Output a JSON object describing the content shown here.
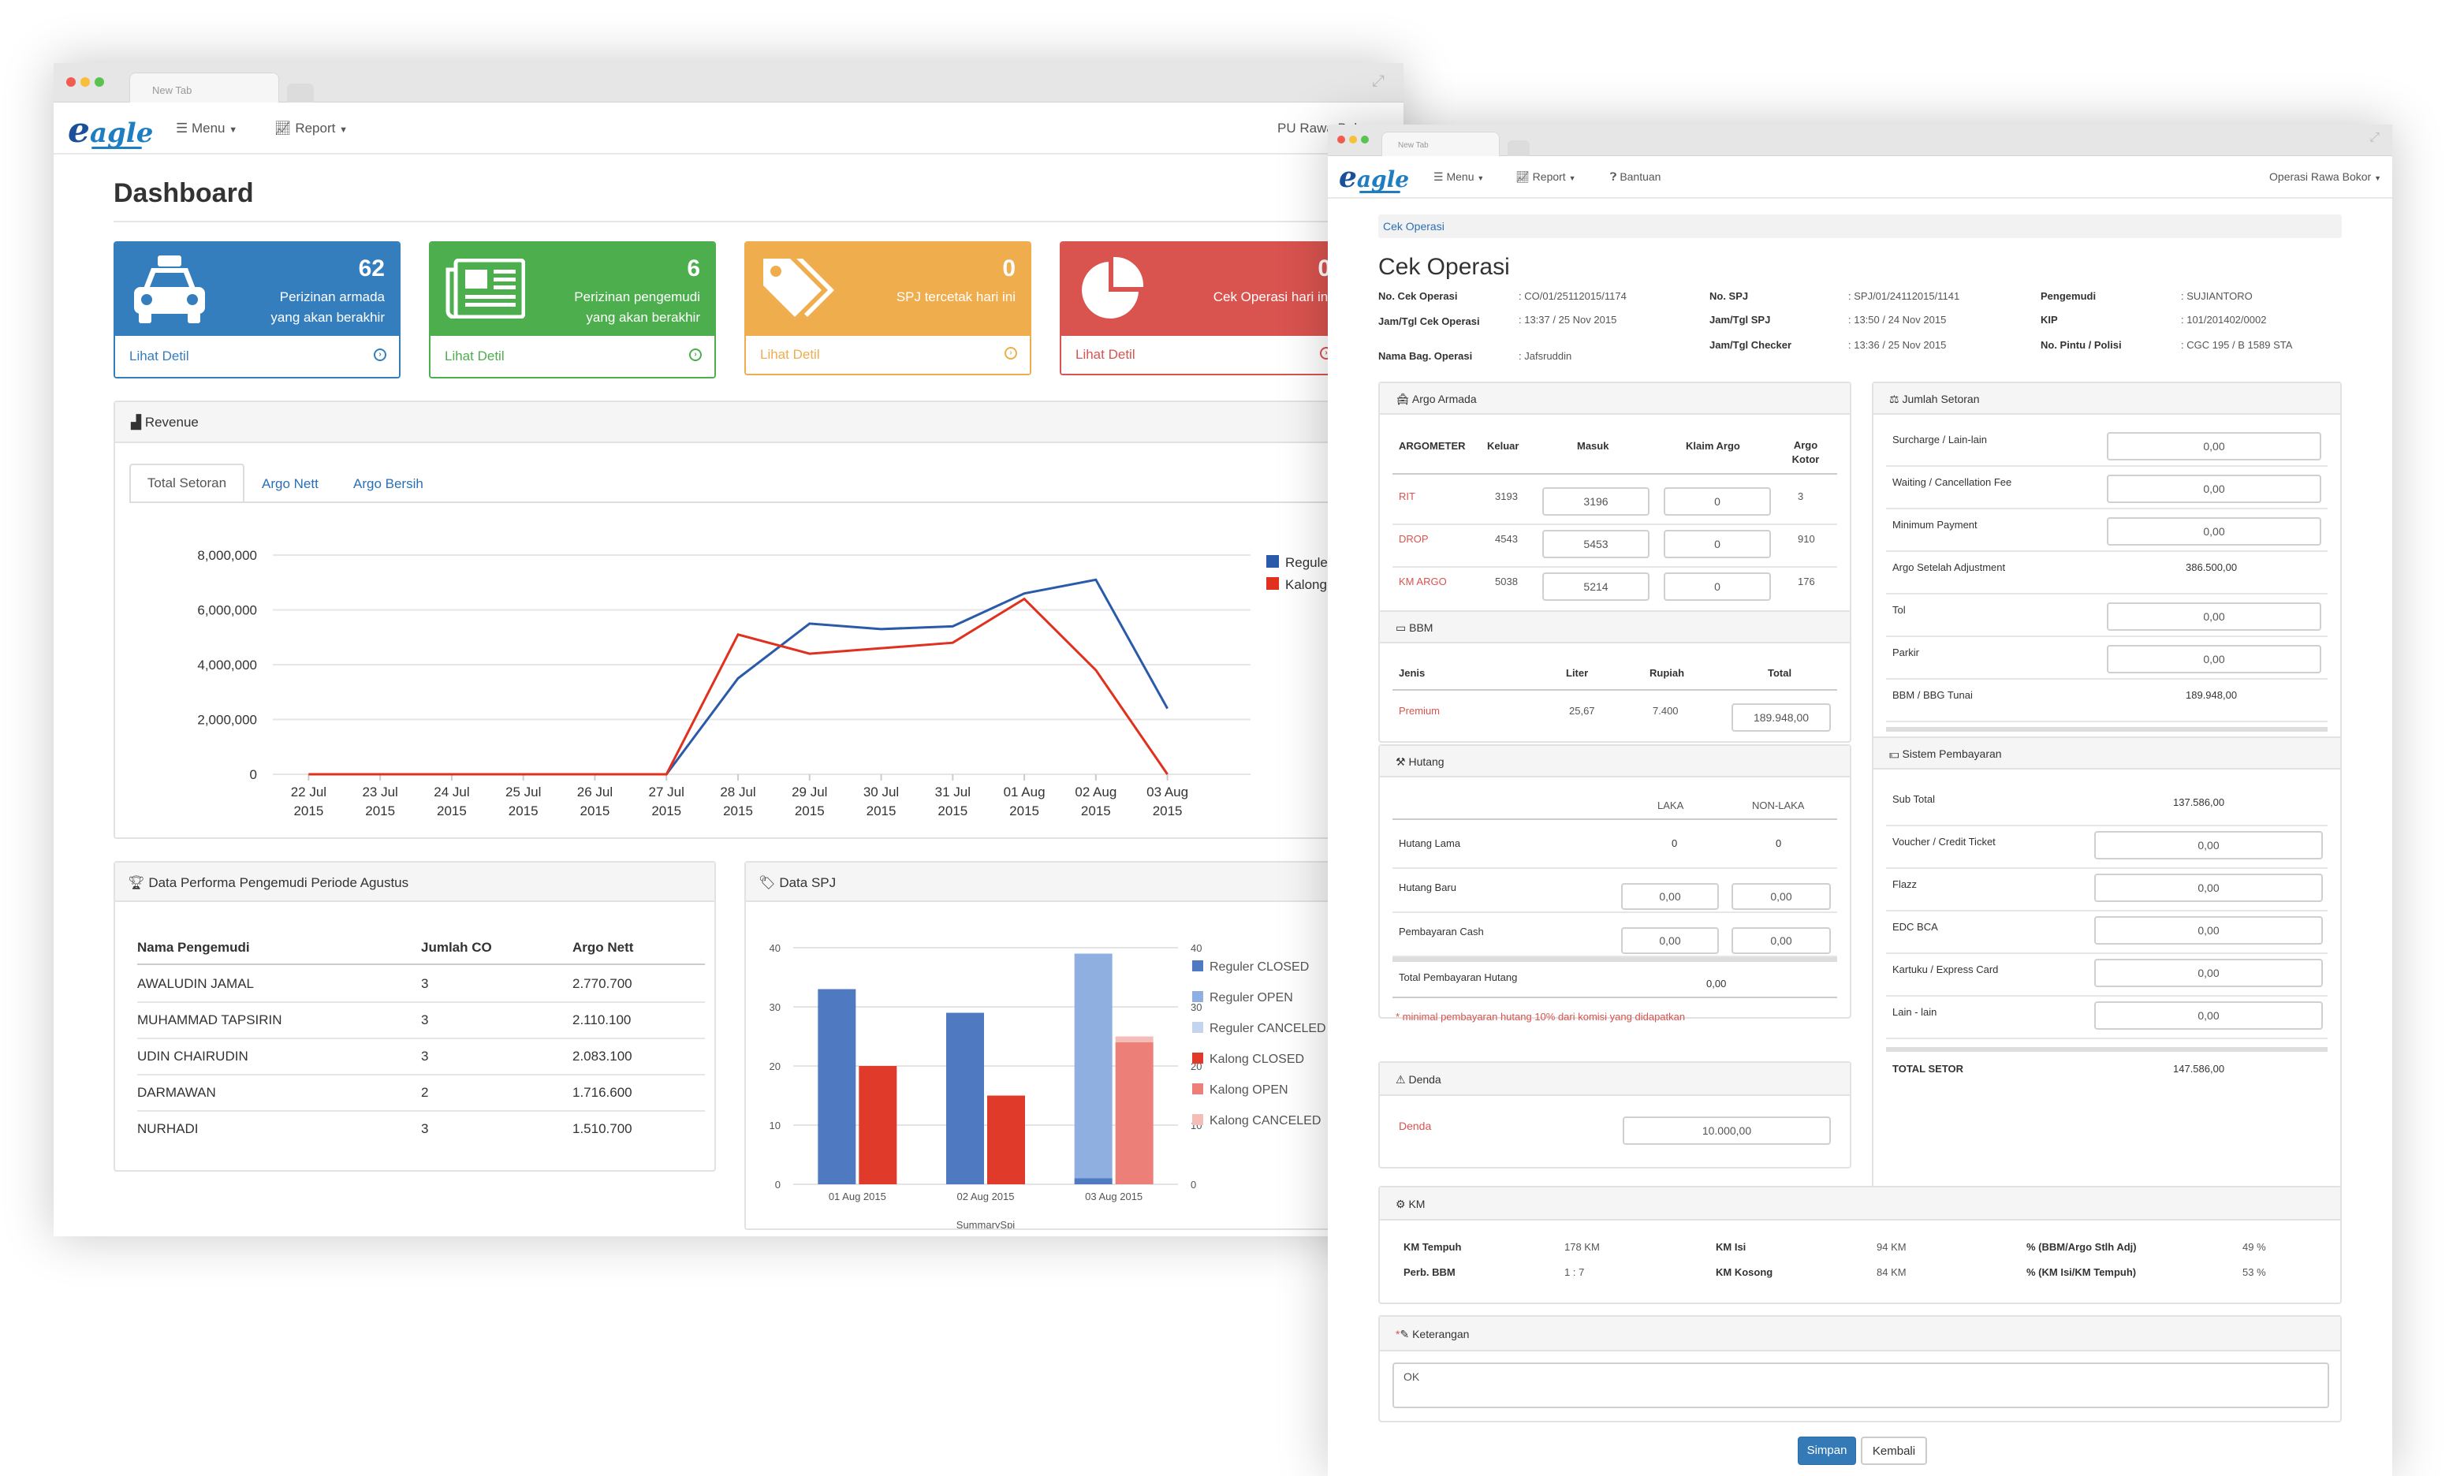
{
  "colors": {
    "blue": "#357ebd",
    "green": "#4cae4c",
    "orange": "#efad4d",
    "red": "#d9534f",
    "link": "#2a6fb6"
  },
  "window1": {
    "tab_title": "New Tab",
    "brand_text": "agle",
    "nav": {
      "menu": "Menu",
      "report": "Report",
      "user": "PU Rawa Bokor"
    },
    "page_title": "Dashboard",
    "cards": [
      {
        "icon": "taxi-icon",
        "number": "62",
        "label_1": "Perizinan armada",
        "label_2": "yang akan berakhir",
        "link": "Lihat Detil",
        "color": "#357ebd"
      },
      {
        "icon": "newspaper-icon",
        "number": "6",
        "label_1": "Perizinan pengemudi",
        "label_2": "yang akan berakhir",
        "link": "Lihat Detil",
        "color": "#4cae4c"
      },
      {
        "icon": "tag-icon",
        "number": "0",
        "label_1": "SPJ tercetak hari ini",
        "label_2": "",
        "link": "Lihat Detil",
        "color": "#efad4d"
      },
      {
        "icon": "pie-chart-icon",
        "number": "0",
        "label_1": "Cek Operasi hari ini",
        "label_2": "",
        "link": "Lihat Detil",
        "color": "#d9534f"
      }
    ],
    "revenue": {
      "heading": "Revenue",
      "tabs": [
        "Total Setoran",
        "Argo Nett",
        "Argo Bersih"
      ]
    },
    "performa": {
      "heading": "Data Performa Pengemudi Periode Agustus",
      "columns": [
        "Nama Pengemudi",
        "Jumlah CO",
        "Argo Nett"
      ],
      "rows": [
        [
          "AWALUDIN JAMAL",
          "3",
          "2.770.700"
        ],
        [
          "MUHAMMAD TAPSIRIN",
          "3",
          "2.110.100"
        ],
        [
          "UDIN CHAIRUDIN",
          "3",
          "2.083.100"
        ],
        [
          "DARMAWAN",
          "2",
          "1.716.600"
        ],
        [
          "NURHADI",
          "3",
          "1.510.700"
        ]
      ]
    },
    "spj": {
      "heading": "Data SPJ"
    }
  },
  "chart_data": [
    {
      "type": "line",
      "x": [
        "22 Jul 2015",
        "23 Jul 2015",
        "24 Jul 2015",
        "25 Jul 2015",
        "26 Jul 2015",
        "27 Jul 2015",
        "28 Jul 2015",
        "29 Jul 2015",
        "30 Jul 2015",
        "31 Jul 2015",
        "01 Aug 2015",
        "02 Aug 2015",
        "03 Aug 2015"
      ],
      "x_ticks": [
        [
          "22 Jul",
          "2015"
        ],
        [
          "23 Jul",
          "2015"
        ],
        [
          "24 Jul",
          "2015"
        ],
        [
          "25 Jul",
          "2015"
        ],
        [
          "26 Jul",
          "2015"
        ],
        [
          "27 Jul",
          "2015"
        ],
        [
          "28 Jul",
          "2015"
        ],
        [
          "29 Jul",
          "2015"
        ],
        [
          "30 Jul",
          "2015"
        ],
        [
          "31 Jul",
          "2015"
        ],
        [
          "01 Aug",
          "2015"
        ],
        [
          "02 Aug",
          "2015"
        ],
        [
          "03 Aug",
          "2015"
        ]
      ],
      "y_ticks": [
        "0",
        "2,000,000",
        "4,000,000",
        "6,000,000",
        "8,000,000"
      ],
      "ylim": [
        0,
        8000000
      ],
      "series": [
        {
          "name": "Reguler",
          "color": "#2a5aa8",
          "values": [
            0,
            0,
            0,
            0,
            0,
            0,
            3500000,
            5500000,
            5300000,
            5400000,
            6600000,
            7100000,
            2400000
          ]
        },
        {
          "name": "Kalong",
          "color": "#e0301e",
          "values": [
            0,
            0,
            0,
            0,
            0,
            0,
            5100000,
            4400000,
            4600000,
            4800000,
            6400000,
            3800000,
            0
          ]
        }
      ],
      "legend": "top-right",
      "grid": true
    },
    {
      "type": "bar",
      "categories": [
        "01 Aug 2015",
        "02 Aug 2015",
        "03 Aug 2015"
      ],
      "xlabel": "SummarySpj",
      "y_ticks": [
        "0",
        "10",
        "20",
        "30",
        "40"
      ],
      "ylim": [
        0,
        40
      ],
      "series": [
        {
          "name": "Reguler CLOSED",
          "color": "#4f79c0",
          "values": [
            33,
            29,
            1
          ]
        },
        {
          "name": "Reguler OPEN",
          "color": "#8eafe0",
          "values": [
            0,
            0,
            38
          ]
        },
        {
          "name": "Reguler CANCELED",
          "color": "#c4d4ef",
          "values": [
            0,
            0,
            0
          ]
        },
        {
          "name": "Kalong CLOSED",
          "color": "#e03a2b",
          "values": [
            20,
            15,
            0
          ]
        },
        {
          "name": "Kalong OPEN",
          "color": "#ec8078",
          "values": [
            0,
            0,
            24
          ]
        },
        {
          "name": "Kalong CANCELED",
          "color": "#f5bdb8",
          "values": [
            0,
            0,
            1
          ]
        }
      ],
      "legend": "right",
      "grid": true
    }
  ],
  "window2": {
    "tab_title": "New Tab",
    "brand_text": "agle",
    "nav": {
      "menu": "Menu",
      "report": "Report",
      "help": "Bantuan",
      "user": "Operasi Rawa Bokor"
    },
    "breadcrumb": "Cek Operasi",
    "page_title": "Cek Operasi",
    "info": [
      {
        "label": "No. Cek Operasi",
        "value": ": CO/01/25112015/1174"
      },
      {
        "label": "Jam/Tgl Cek Operasi",
        "value": ": 13:37 / 25 Nov 2015"
      },
      {
        "label": "Nama Bag. Operasi",
        "value": ": Jafsruddin"
      },
      {
        "label": "No. SPJ",
        "value": ": SPJ/01/24112015/1141"
      },
      {
        "label": "Jam/Tgl SPJ",
        "value": ": 13:50 / 24 Nov 2015"
      },
      {
        "label": "Jam/Tgl Checker",
        "value": ": 13:36 / 25 Nov 2015"
      },
      {
        "label": "Pengemudi",
        "value": ": SUJIANTORO"
      },
      {
        "label": "KIP",
        "value": ": 101/201402/0002"
      },
      {
        "label": "No. Pintu / Polisi",
        "value": ": CGC 195 / B 1589 STA"
      }
    ],
    "argo": {
      "heading": "Argo Armada",
      "columns": [
        "ARGOMETER",
        "Keluar",
        "Masuk",
        "Klaim Argo",
        "Argo Kotor"
      ],
      "rows": [
        {
          "name": "RIT",
          "keluar": "3193",
          "masuk": "3196",
          "klaim": "0",
          "kotor": "3"
        },
        {
          "name": "DROP",
          "keluar": "4543",
          "masuk": "5453",
          "klaim": "0",
          "kotor": "910"
        },
        {
          "name": "KM ARGO",
          "keluar": "5038",
          "masuk": "5214",
          "klaim": "0",
          "kotor": "176"
        }
      ]
    },
    "bbm": {
      "heading": "BBM",
      "columns": [
        "Jenis",
        "Liter",
        "Rupiah",
        "Total"
      ],
      "row": {
        "name": "Premium",
        "liter": "25,67",
        "rupiah": "7.400",
        "total": "189.948,00"
      }
    },
    "hutang": {
      "heading": "Hutang",
      "columns": [
        "LAKA",
        "NON-LAKA"
      ],
      "rows": [
        {
          "label": "Hutang Lama",
          "laka": "0",
          "nonlaka": "0"
        },
        {
          "label": "Hutang Baru",
          "laka": "0,00",
          "nonlaka": "0,00"
        },
        {
          "label": "Pembayaran Cash",
          "laka": "0,00",
          "nonlaka": "0,00"
        }
      ],
      "total_label": "Total Pembayaran Hutang",
      "total_value": "0,00",
      "note": "* minimal pembayaran hutang 10% dari komisi yang didapatkan"
    },
    "denda": {
      "heading": "Denda",
      "label": "Denda",
      "value": "10.000,00"
    },
    "setoran": {
      "heading": "Jumlah Setoran",
      "rows": [
        {
          "label": "Surcharge / Lain-lain",
          "value": "0,00"
        },
        {
          "label": "Waiting / Cancellation Fee",
          "value": "0,00"
        },
        {
          "label": "Minimum Payment",
          "value": "0,00"
        },
        {
          "label": "Argo Setelah Adjustment",
          "value": "386.500,00"
        },
        {
          "label": "Tol",
          "value": "0,00"
        },
        {
          "label": "Parkir",
          "value": "0,00"
        },
        {
          "label": "BBM / BBG Tunai",
          "value": "189.948,00"
        }
      ],
      "cut_label": "Sub Total"
    },
    "pembayaran": {
      "heading": "Sistem Pembayaran",
      "rows": [
        {
          "label": "Sub Total",
          "value": "137.586,00"
        },
        {
          "label": "Voucher / Credit Ticket",
          "value": "0,00"
        },
        {
          "label": "Flazz",
          "value": "0,00"
        },
        {
          "label": "EDC BCA",
          "value": "0,00"
        },
        {
          "label": "Kartuku / Express Card",
          "value": "0,00"
        },
        {
          "label": "Lain - lain",
          "value": "0,00"
        }
      ],
      "total_label": "TOTAL SETOR",
      "total_value": "147.586,00"
    },
    "km": {
      "heading": "KM",
      "items": [
        {
          "label": "KM Tempuh",
          "value": "178 KM"
        },
        {
          "label": "Perb. BBM",
          "value": "1 : 7"
        },
        {
          "label": "KM Isi",
          "value": "94 KM"
        },
        {
          "label": "KM Kosong",
          "value": "84 KM"
        },
        {
          "label": "% (BBM/Argo Stlh Adj)",
          "value": "49 %"
        },
        {
          "label": "% (KM Isi/KM Tempuh)",
          "value": "53 %"
        }
      ]
    },
    "keterangan": {
      "heading": "Keterangan",
      "value": "OK"
    },
    "buttons": {
      "save": "Simpan",
      "back": "Kembali"
    }
  }
}
